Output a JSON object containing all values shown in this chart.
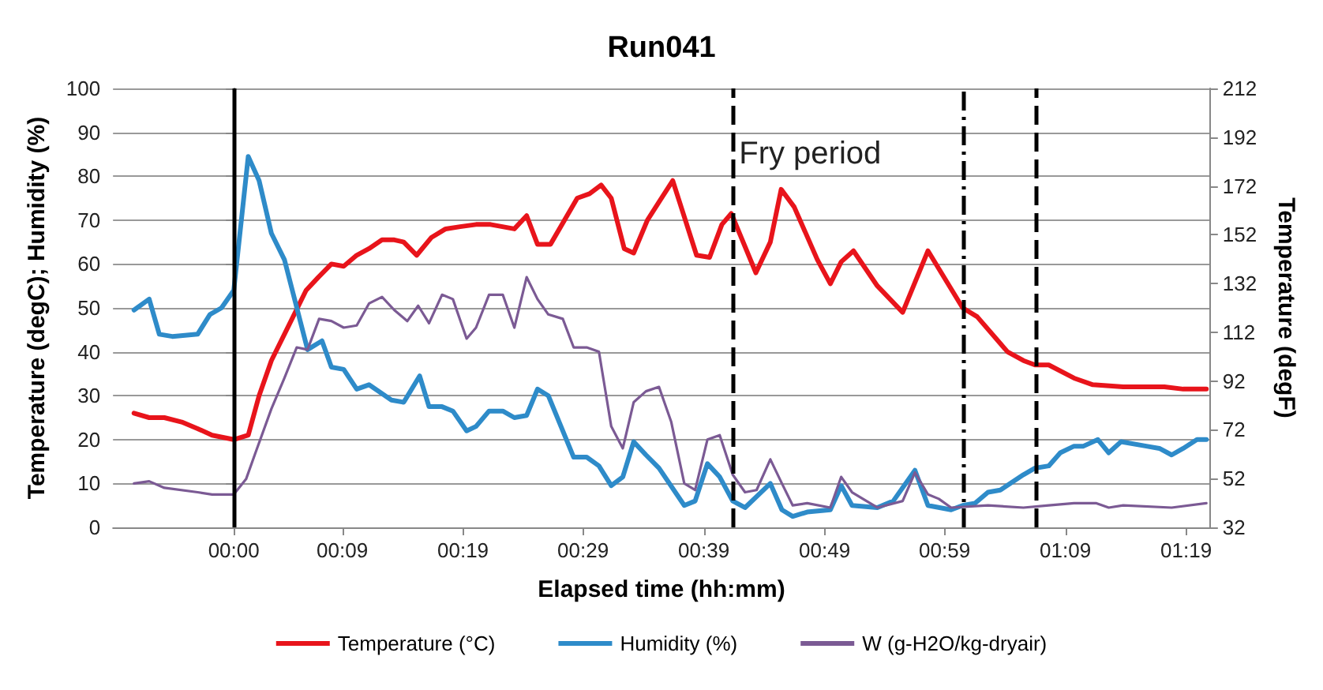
{
  "chart_data": {
    "type": "line",
    "title": "Run041",
    "xlabel": "Elapsed time (hh:mm)",
    "ylabel": "Temperature (degC); Humidity (%)",
    "y2label": "Temperature (degF)",
    "xlim": [
      -0.167,
      1.35
    ],
    "xticks": [
      {
        "value": 0,
        "label": "00:00"
      },
      {
        "value": 0.15,
        "label": "00:09"
      },
      {
        "value": 0.317,
        "label": "00:19"
      },
      {
        "value": 0.483,
        "label": "00:29"
      },
      {
        "value": 0.65,
        "label": "00:39"
      },
      {
        "value": 0.817,
        "label": "00:49"
      },
      {
        "value": 0.983,
        "label": "00:59"
      },
      {
        "value": 1.15,
        "label": "01:09"
      },
      {
        "value": 1.317,
        "label": "01:19"
      }
    ],
    "ylim": [
      0,
      100
    ],
    "yticks": [
      0,
      10,
      20,
      30,
      40,
      50,
      60,
      70,
      80,
      90,
      100
    ],
    "y2lim": [
      32,
      212
    ],
    "y2ticks": [
      32,
      52,
      72,
      92,
      112,
      132,
      152,
      172,
      192,
      212
    ],
    "grid": "y",
    "legend": "bottom",
    "marker": "none",
    "line_style": "solid",
    "series": [
      {
        "name": "Temperature (°C)",
        "color": "#e8141b",
        "x": [
          -0.138,
          -0.117,
          -0.096,
          -0.072,
          -0.05,
          -0.03,
          0,
          0.02,
          0.035,
          0.052,
          0.073,
          0.1,
          0.117,
          0.135,
          0.152,
          0.17,
          0.187,
          0.205,
          0.222,
          0.235,
          0.253,
          0.273,
          0.293,
          0.313,
          0.335,
          0.355,
          0.388,
          0.405,
          0.42,
          0.438,
          0.475,
          0.492,
          0.508,
          0.522,
          0.54,
          0.553,
          0.572,
          0.607,
          0.64,
          0.658,
          0.675,
          0.688,
          0.722,
          0.742,
          0.757,
          0.775,
          0.807,
          0.825,
          0.84,
          0.857,
          0.89,
          0.925,
          0.96,
          1.008,
          1.028,
          1.07,
          1.092,
          1.108,
          1.127,
          1.162,
          1.188,
          1.23,
          1.287,
          1.313,
          1.345
        ],
        "values": [
          26,
          25,
          25,
          24,
          22.5,
          21,
          20,
          21,
          30,
          38,
          45,
          54,
          57,
          60,
          59.5,
          62,
          63.5,
          65.5,
          65.5,
          65,
          62,
          66,
          68,
          68.5,
          69,
          69,
          68,
          71,
          64.5,
          64.5,
          75,
          76,
          78,
          75,
          63.5,
          62.5,
          70,
          79,
          62,
          61.5,
          69,
          71.5,
          58,
          65,
          77,
          73,
          61,
          55.5,
          60.5,
          63,
          55,
          49,
          63,
          50,
          48,
          40,
          38,
          37,
          37,
          34,
          32.5,
          32,
          32,
          31.5,
          31.5
        ]
      },
      {
        "name": "Humidity (%)",
        "color": "#2e8bc9",
        "x": [
          -0.138,
          -0.117,
          -0.103,
          -0.085,
          -0.05,
          -0.033,
          -0.017,
          0,
          0.02,
          0.035,
          0.052,
          0.07,
          0.102,
          0.122,
          0.135,
          0.152,
          0.17,
          0.187,
          0.218,
          0.235,
          0.257,
          0.27,
          0.288,
          0.303,
          0.322,
          0.335,
          0.353,
          0.372,
          0.388,
          0.405,
          0.42,
          0.435,
          0.47,
          0.488,
          0.505,
          0.522,
          0.538,
          0.553,
          0.57,
          0.588,
          0.623,
          0.638,
          0.655,
          0.672,
          0.69,
          0.707,
          0.742,
          0.758,
          0.773,
          0.793,
          0.825,
          0.84,
          0.855,
          0.89,
          0.912,
          0.942,
          0.96,
          0.992,
          1.008,
          1.025,
          1.043,
          1.06,
          1.092,
          1.108,
          1.127,
          1.143,
          1.162,
          1.175,
          1.195,
          1.21,
          1.227,
          1.262,
          1.28,
          1.297,
          1.313,
          1.332,
          1.345
        ],
        "values": [
          49.5,
          52,
          44,
          43.5,
          44,
          48.5,
          50,
          54,
          84.5,
          79,
          67,
          61,
          40.5,
          42.5,
          36.5,
          36,
          31.5,
          32.5,
          29,
          28.5,
          34.5,
          27.5,
          27.5,
          26.5,
          22,
          23,
          26.5,
          26.5,
          25,
          25.5,
          31.5,
          30,
          16,
          16,
          14,
          9.5,
          11.5,
          19.5,
          16.5,
          13.5,
          5,
          6,
          14.5,
          11.5,
          6,
          4.5,
          10,
          4,
          2.5,
          3.5,
          4,
          9.5,
          5,
          4.5,
          6,
          13,
          5,
          4,
          5,
          5.5,
          8,
          8.5,
          12,
          13.5,
          14,
          17,
          18.5,
          18.5,
          20,
          17,
          19.5,
          18.5,
          18,
          16.5,
          18,
          20,
          20
        ]
      },
      {
        "name": "W (g-H2O/kg-dryair)",
        "color": "#7b5a94",
        "x": [
          -0.138,
          -0.117,
          -0.096,
          -0.05,
          -0.03,
          0,
          0.017,
          0.03,
          0.052,
          0.07,
          0.087,
          0.102,
          0.118,
          0.135,
          0.152,
          0.17,
          0.187,
          0.205,
          0.222,
          0.24,
          0.255,
          0.27,
          0.288,
          0.303,
          0.322,
          0.335,
          0.353,
          0.372,
          0.388,
          0.405,
          0.42,
          0.435,
          0.455,
          0.47,
          0.488,
          0.505,
          0.522,
          0.538,
          0.553,
          0.57,
          0.588,
          0.605,
          0.623,
          0.638,
          0.655,
          0.672,
          0.69,
          0.707,
          0.723,
          0.742,
          0.758,
          0.773,
          0.793,
          0.825,
          0.84,
          0.855,
          0.89,
          0.925,
          0.942,
          0.96,
          0.975,
          0.992,
          1.043,
          1.092,
          1.127,
          1.162,
          1.193,
          1.21,
          1.23,
          1.297,
          1.345
        ],
        "values": [
          10,
          10.5,
          9,
          8,
          7.5,
          7.5,
          11,
          17,
          27,
          34,
          41,
          40.5,
          47.5,
          47,
          45.5,
          46,
          51,
          52.5,
          49.5,
          47,
          50.5,
          46.5,
          53,
          52,
          43,
          45.5,
          53,
          53,
          45.5,
          57,
          52,
          48.5,
          47.5,
          41,
          41,
          40,
          23,
          18,
          28.5,
          31,
          32,
          24,
          10,
          8.5,
          20,
          21,
          12,
          8,
          8.5,
          15.5,
          10,
          5,
          5.5,
          4.5,
          11.5,
          8,
          4.5,
          6,
          12.5,
          7.5,
          6.5,
          4.5,
          5,
          4.5,
          5,
          5.5,
          5.5,
          4.5,
          5,
          4.5,
          5.5
        ]
      }
    ],
    "ref_lines": [
      {
        "axis": "x",
        "value": 0,
        "color": "#000000",
        "line_style": "solid"
      },
      {
        "axis": "x",
        "value": 0.69,
        "color": "#000000",
        "line_style": "dashed"
      },
      {
        "axis": "x",
        "value": 1.008,
        "color": "#000000",
        "line_style": "dotted"
      },
      {
        "axis": "x",
        "value": 1.108,
        "color": "#000000",
        "line_style": "dashed"
      }
    ],
    "annotations": [
      {
        "text": "Fry period",
        "x": 0.69,
        "y": 85
      }
    ]
  }
}
